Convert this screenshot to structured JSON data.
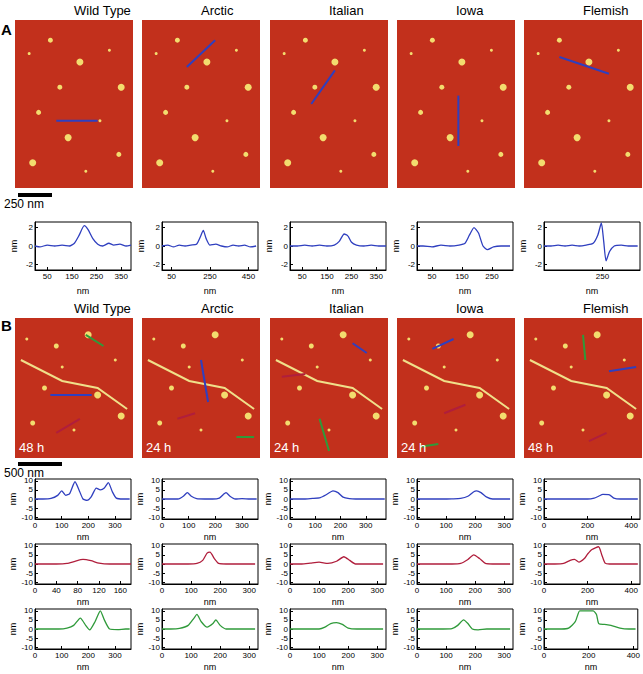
{
  "panels": [
    {
      "label": "A",
      "scale_bar": "250 nm",
      "images": [
        {
          "title": "Wild Type"
        },
        {
          "title": "Arctic"
        },
        {
          "title": "Italian"
        },
        {
          "title": "Iowa"
        },
        {
          "title": "Flemish"
        }
      ]
    },
    {
      "label": "B",
      "scale_bar": "500 nm",
      "images": [
        {
          "title": "Wild Type",
          "annotation": "48 h"
        },
        {
          "title": "Arctic",
          "annotation": "24 h"
        },
        {
          "title": "Italian",
          "annotation": "24 h"
        },
        {
          "title": "Iowa",
          "annotation": "24 h"
        },
        {
          "title": "Flemish",
          "annotation": "48 h"
        }
      ]
    }
  ],
  "chart_data": [
    {
      "panel": "A",
      "type": "line",
      "x_label": "nm",
      "y_label": "nm",
      "color": "#2f3fbf",
      "grid": false,
      "xlim": [
        0,
        390
      ],
      "xticks": [
        50,
        150,
        250,
        350
      ],
      "ylim": [
        -2.6,
        2.6
      ],
      "yticks": [
        -2,
        0,
        2
      ],
      "x": [
        0,
        20,
        50,
        80,
        110,
        140,
        160,
        180,
        200,
        215,
        235,
        255,
        275,
        300,
        320,
        345,
        370,
        390
      ],
      "values": [
        0,
        -0.1,
        0.1,
        0,
        0.1,
        0,
        0.3,
        1.2,
        2.2,
        1.8,
        0.8,
        0.2,
        0,
        0.3,
        0.1,
        0.2,
        0,
        0.1
      ]
    },
    {
      "panel": "A",
      "type": "line",
      "x_label": "nm",
      "y_label": "nm",
      "color": "#2f3fbf",
      "grid": false,
      "xlim": [
        0,
        500
      ],
      "xticks": [
        50,
        250,
        450
      ],
      "ylim": [
        -2.6,
        2.6
      ],
      "yticks": [
        -2,
        0,
        2
      ],
      "x": [
        0,
        30,
        60,
        90,
        120,
        150,
        180,
        200,
        215,
        230,
        250,
        280,
        310,
        340,
        370,
        400,
        430,
        460,
        490
      ],
      "values": [
        0,
        0.1,
        -0.1,
        0.1,
        0,
        0.1,
        0.2,
        1.0,
        1.7,
        0.8,
        0.1,
        0.2,
        0,
        -0.1,
        0.1,
        0,
        0.1,
        -0.1,
        0
      ]
    },
    {
      "panel": "A",
      "type": "line",
      "x_label": "nm",
      "y_label": "nm",
      "color": "#2f3fbf",
      "grid": false,
      "xlim": [
        0,
        390
      ],
      "xticks": [
        50,
        150,
        250,
        350
      ],
      "ylim": [
        -2.6,
        2.6
      ],
      "yticks": [
        -2,
        0,
        2
      ],
      "x": [
        0,
        30,
        60,
        90,
        120,
        150,
        180,
        200,
        220,
        235,
        250,
        270,
        300,
        330,
        360,
        390
      ],
      "values": [
        0,
        0,
        0.1,
        0,
        0.1,
        0,
        0.1,
        0.5,
        1.3,
        1.1,
        0.4,
        0.1,
        0,
        0.1,
        0,
        0
      ]
    },
    {
      "panel": "A",
      "type": "line",
      "x_label": "nm",
      "y_label": "nm",
      "color": "#2f3fbf",
      "grid": false,
      "xlim": [
        0,
        320
      ],
      "xticks": [
        50,
        150,
        250
      ],
      "ylim": [
        -2.6,
        2.6
      ],
      "yticks": [
        -2,
        0,
        2
      ],
      "x": [
        0,
        20,
        50,
        80,
        110,
        140,
        160,
        175,
        190,
        205,
        220,
        235,
        255,
        280,
        310
      ],
      "values": [
        0,
        0,
        -0.1,
        0.1,
        0,
        0.1,
        0.3,
        1.2,
        2.0,
        1.4,
        0,
        -0.4,
        -0.1,
        0,
        0
      ]
    },
    {
      "panel": "A",
      "type": "line",
      "x_label": "nm",
      "y_label": "nm",
      "color": "#2f3fbf",
      "grid": false,
      "xlim": [
        0,
        410
      ],
      "xticks": [
        250
      ],
      "ylim": [
        -2.6,
        2.6
      ],
      "yticks": [
        -2,
        0,
        2
      ],
      "x": [
        0,
        30,
        60,
        90,
        120,
        150,
        180,
        210,
        230,
        245,
        255,
        265,
        280,
        300,
        330,
        360,
        400
      ],
      "values": [
        0,
        0,
        0.1,
        0,
        0.1,
        0,
        0.1,
        0.3,
        1.2,
        2.5,
        0.5,
        -1.6,
        -0.6,
        0,
        0.1,
        0,
        0
      ]
    },
    {
      "panel": "B",
      "type": "line",
      "x_label": "nm",
      "y_label": "nm",
      "color": "#2f3fbf",
      "grid": false,
      "xlim": [
        0,
        360
      ],
      "xticks": [
        0,
        100,
        200,
        300
      ],
      "ylim": [
        -11,
        11
      ],
      "yticks": [
        -10,
        -5,
        0,
        5,
        10
      ],
      "x": [
        0,
        30,
        60,
        85,
        100,
        115,
        130,
        150,
        165,
        180,
        195,
        210,
        230,
        245,
        260,
        275,
        290,
        305,
        330,
        355
      ],
      "values": [
        0,
        0,
        0.3,
        2,
        4.5,
        2,
        3,
        9.5,
        5,
        0,
        -0.8,
        1,
        6,
        5,
        6,
        9,
        4,
        0.5,
        0,
        0
      ]
    },
    {
      "panel": "B",
      "type": "line",
      "x_label": "nm",
      "y_label": "nm",
      "color": "#2f3fbf",
      "grid": false,
      "xlim": [
        0,
        360
      ],
      "xticks": [
        0,
        100,
        200,
        300
      ],
      "ylim": [
        -11,
        11
      ],
      "yticks": [
        -10,
        -5,
        0,
        5,
        10
      ],
      "x": [
        0,
        30,
        60,
        80,
        95,
        110,
        130,
        160,
        190,
        215,
        230,
        240,
        255,
        275,
        300,
        330,
        355
      ],
      "values": [
        0,
        0,
        0,
        1.5,
        3.5,
        1.5,
        0.2,
        0,
        0,
        0.5,
        2.5,
        3.5,
        1.5,
        0,
        0.2,
        0,
        0
      ]
    },
    {
      "panel": "B",
      "type": "line",
      "x_label": "nm",
      "y_label": "nm",
      "color": "#2f3fbf",
      "grid": false,
      "xlim": [
        0,
        380
      ],
      "xticks": [
        0,
        100,
        200,
        300
      ],
      "ylim": [
        -11,
        11
      ],
      "yticks": [
        -10,
        -5,
        0,
        5,
        10
      ],
      "x": [
        0,
        30,
        60,
        90,
        120,
        145,
        170,
        190,
        210,
        235,
        260,
        290,
        320,
        350,
        375
      ],
      "values": [
        0,
        0,
        0,
        0.3,
        0.8,
        2.5,
        4.5,
        3.5,
        1,
        0.2,
        0,
        0,
        0,
        0,
        0
      ]
    },
    {
      "panel": "B",
      "type": "line",
      "x_label": "nm",
      "y_label": "nm",
      "color": "#2f3fbf",
      "grid": false,
      "xlim": [
        0,
        330
      ],
      "xticks": [
        0,
        100,
        200,
        300
      ],
      "ylim": [
        -11,
        11
      ],
      "yticks": [
        -10,
        -5,
        0,
        5,
        10
      ],
      "x": [
        0,
        30,
        60,
        90,
        120,
        150,
        175,
        195,
        205,
        220,
        240,
        260,
        290,
        320
      ],
      "values": [
        0,
        0,
        0,
        0,
        0.1,
        0.3,
        1.5,
        4,
        4.5,
        3.5,
        1,
        0,
        0,
        0
      ]
    },
    {
      "panel": "B",
      "type": "line",
      "x_label": "nm",
      "y_label": "nm",
      "color": "#2f3fbf",
      "grid": false,
      "xlim": [
        0,
        440
      ],
      "xticks": [
        0,
        200,
        400
      ],
      "ylim": [
        -11,
        11
      ],
      "yticks": [
        -10,
        -5,
        0,
        5,
        10
      ],
      "x": [
        0,
        40,
        80,
        120,
        160,
        200,
        230,
        250,
        270,
        300,
        320,
        350,
        390,
        430
      ],
      "values": [
        0,
        0,
        0,
        0,
        0,
        0,
        0.5,
        1.5,
        2.5,
        2.3,
        0.5,
        0,
        0,
        0
      ]
    },
    {
      "panel": "B",
      "type": "line",
      "x_label": "nm",
      "y_label": "nm",
      "color": "#b01e3c",
      "grid": false,
      "xlim": [
        0,
        180
      ],
      "xticks": [
        0,
        40,
        80,
        120,
        160
      ],
      "ylim": [
        -11,
        11
      ],
      "yticks": [
        -10,
        -5,
        0,
        5,
        10
      ],
      "x": [
        0,
        20,
        40,
        60,
        75,
        90,
        105,
        120,
        140,
        160,
        180
      ],
      "values": [
        0,
        0,
        0,
        0.3,
        1.5,
        2.5,
        1.8,
        0.5,
        0,
        0,
        0
      ]
    },
    {
      "panel": "B",
      "type": "line",
      "x_label": "nm",
      "y_label": "nm",
      "color": "#b01e3c",
      "grid": false,
      "xlim": [
        0,
        330
      ],
      "xticks": [
        0,
        100,
        200,
        300
      ],
      "ylim": [
        -11,
        11
      ],
      "yticks": [
        -10,
        -5,
        0,
        5,
        10
      ],
      "x": [
        0,
        30,
        60,
        90,
        120,
        140,
        155,
        165,
        180,
        195,
        220,
        250,
        280,
        320
      ],
      "values": [
        0,
        0,
        0,
        0,
        0.3,
        2,
        6,
        6.5,
        3,
        0.3,
        0,
        0,
        0,
        0
      ]
    },
    {
      "panel": "B",
      "type": "line",
      "x_label": "nm",
      "y_label": "nm",
      "color": "#b01e3c",
      "grid": false,
      "xlim": [
        0,
        330
      ],
      "xticks": [
        0,
        100,
        200,
        300
      ],
      "ylim": [
        -11,
        11
      ],
      "yticks": [
        -10,
        -5,
        0,
        5,
        10
      ],
      "x": [
        0,
        40,
        70,
        100,
        130,
        160,
        185,
        205,
        225,
        250,
        280,
        320
      ],
      "values": [
        0,
        0,
        0.5,
        1,
        0.3,
        1.5,
        4,
        2,
        0,
        0,
        0,
        0
      ]
    },
    {
      "panel": "B",
      "type": "line",
      "x_label": "nm",
      "y_label": "nm",
      "color": "#b01e3c",
      "grid": false,
      "xlim": [
        0,
        330
      ],
      "xticks": [
        0,
        100,
        200,
        300
      ],
      "ylim": [
        -11,
        11
      ],
      "yticks": [
        -10,
        -5,
        0,
        5,
        10
      ],
      "x": [
        0,
        30,
        60,
        90,
        120,
        150,
        175,
        195,
        215,
        235,
        260,
        290,
        320
      ],
      "values": [
        0,
        0,
        0,
        0,
        0,
        0.3,
        2.5,
        5,
        3,
        0.3,
        0,
        0,
        0
      ]
    },
    {
      "panel": "B",
      "type": "line",
      "x_label": "nm",
      "y_label": "nm",
      "color": "#b01e3c",
      "grid": false,
      "xlim": [
        0,
        440
      ],
      "xticks": [
        0,
        200,
        400
      ],
      "ylim": [
        -11,
        11
      ],
      "yticks": [
        -10,
        -5,
        0,
        5,
        10
      ],
      "x": [
        0,
        50,
        90,
        120,
        140,
        160,
        185,
        200,
        220,
        250,
        265,
        280,
        300,
        340,
        390,
        430
      ],
      "values": [
        0,
        0,
        0.3,
        2,
        2.5,
        1,
        3,
        5.5,
        8,
        9.5,
        5,
        0.5,
        0,
        0,
        0,
        0
      ]
    },
    {
      "panel": "B",
      "type": "line",
      "x_label": "nm",
      "y_label": "nm",
      "color": "#2f9a3a",
      "grid": false,
      "xlim": [
        0,
        360
      ],
      "xticks": [
        0,
        100,
        200,
        300
      ],
      "ylim": [
        -11,
        11
      ],
      "yticks": [
        -10,
        -5,
        0,
        5,
        10
      ],
      "x": [
        0,
        30,
        60,
        90,
        120,
        145,
        170,
        190,
        205,
        225,
        245,
        260,
        280,
        310,
        340,
        355
      ],
      "values": [
        0,
        0,
        0,
        0,
        0.5,
        2,
        6,
        2,
        -0.5,
        4,
        10,
        5,
        0,
        -0.3,
        0,
        0
      ]
    },
    {
      "panel": "B",
      "type": "line",
      "x_label": "nm",
      "y_label": "nm",
      "color": "#2f9a3a",
      "grid": false,
      "xlim": [
        0,
        330
      ],
      "xticks": [
        0,
        100,
        200,
        300
      ],
      "ylim": [
        -11,
        11
      ],
      "yticks": [
        -10,
        -5,
        0,
        5,
        10
      ],
      "x": [
        0,
        30,
        60,
        90,
        110,
        120,
        135,
        155,
        175,
        185,
        200,
        220,
        250,
        280,
        320
      ],
      "values": [
        0,
        0,
        0.3,
        2,
        6,
        8,
        4,
        1,
        3,
        5,
        2,
        0,
        0,
        0,
        0
      ]
    },
    {
      "panel": "B",
      "type": "line",
      "x_label": "nm",
      "y_label": "nm",
      "color": "#2f9a3a",
      "grid": false,
      "xlim": [
        0,
        330
      ],
      "xticks": [
        0,
        100,
        200,
        300
      ],
      "ylim": [
        -11,
        11
      ],
      "yticks": [
        -10,
        -5,
        0,
        5,
        10
      ],
      "x": [
        0,
        40,
        70,
        100,
        120,
        140,
        160,
        180,
        200,
        230,
        270,
        320
      ],
      "values": [
        0,
        0,
        0,
        0,
        1,
        3,
        3.5,
        2.5,
        0.5,
        0,
        0,
        0
      ]
    },
    {
      "panel": "B",
      "type": "line",
      "x_label": "nm",
      "y_label": "nm",
      "color": "#2f9a3a",
      "grid": false,
      "xlim": [
        0,
        330
      ],
      "xticks": [
        0,
        100,
        200,
        300
      ],
      "ylim": [
        -11,
        11
      ],
      "yticks": [
        -10,
        -5,
        0,
        5,
        10
      ],
      "x": [
        0,
        30,
        60,
        90,
        120,
        140,
        160,
        175,
        190,
        210,
        240,
        270,
        300,
        320
      ],
      "values": [
        0,
        0,
        0,
        0,
        0.2,
        2,
        5,
        3,
        0,
        -0.5,
        0,
        0,
        0,
        0
      ]
    },
    {
      "panel": "B",
      "type": "line",
      "x_label": "nm",
      "y_label": "nm",
      "color": "#2f9a3a",
      "grid": false,
      "xlim": [
        0,
        420
      ],
      "xticks": [
        0,
        200,
        400
      ],
      "ylim": [
        -11,
        11
      ],
      "yticks": [
        -10,
        -5,
        0,
        5,
        10
      ],
      "x": [
        0,
        40,
        80,
        110,
        140,
        160,
        180,
        220,
        235,
        245,
        270,
        300,
        340,
        380,
        410
      ],
      "values": [
        0,
        0,
        0,
        0.5,
        4,
        10,
        10,
        10,
        8,
        3,
        2.5,
        2,
        0.5,
        0,
        0
      ]
    }
  ]
}
